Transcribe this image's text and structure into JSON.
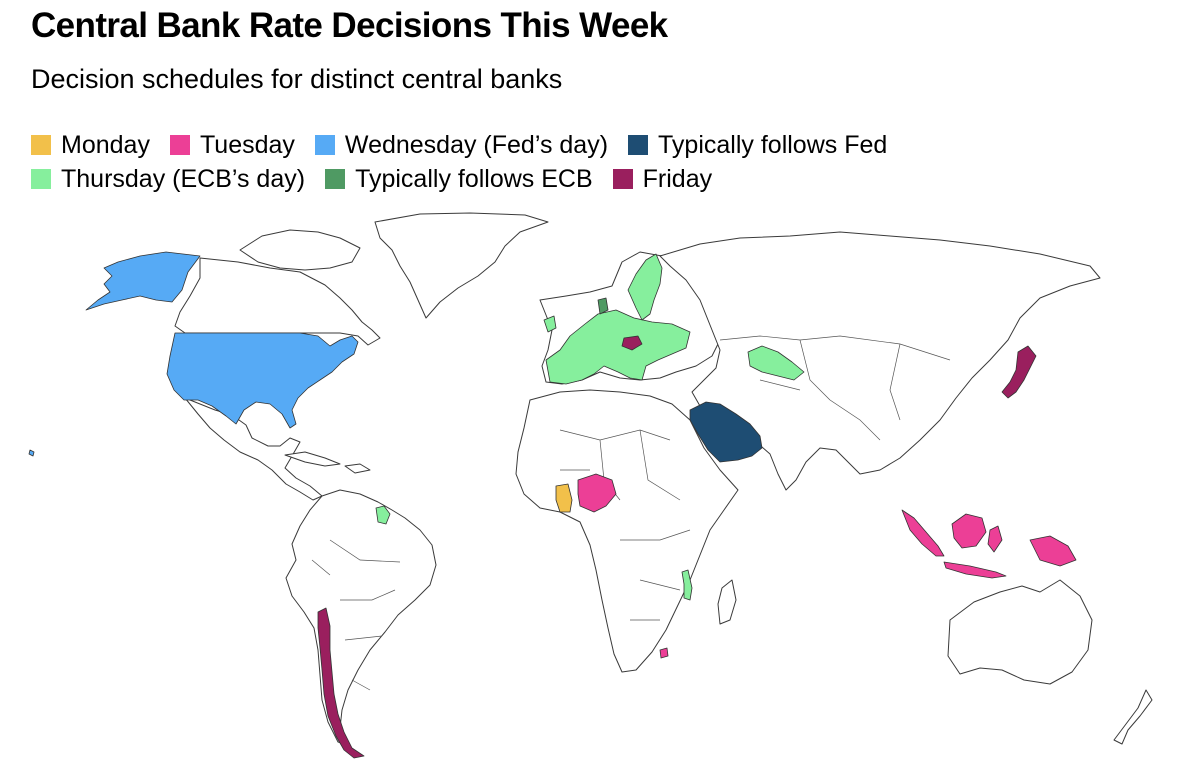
{
  "title": "Central Bank Rate Decisions This Week",
  "subtitle": "Decision schedules for distinct central banks",
  "legend": [
    {
      "label": "Monday",
      "color": "#f2c04a"
    },
    {
      "label": "Tuesday",
      "color": "#ec3f96"
    },
    {
      "label": "Wednesday (Fed’s day)",
      "color": "#56aaf5"
    },
    {
      "label": "Typically follows Fed",
      "color": "#1e4d73"
    },
    {
      "label": "Thursday (ECB’s day)",
      "color": "#86ef9d"
    },
    {
      "label": "Typically follows ECB",
      "color": "#4f9a63"
    },
    {
      "label": "Friday",
      "color": "#9a1f5e"
    }
  ],
  "countries": {
    "monday": [
      "Ghana"
    ],
    "tuesday": [
      "Nigeria",
      "Indonesia"
    ],
    "wednesday": [
      "United States"
    ],
    "follows_fed": [
      "Saudi Arabia"
    ],
    "thursday": [
      "Euro Area",
      "Sweden",
      "Norway",
      "Poland",
      "Romania",
      "Ukraine",
      "Kazakhstan",
      "Guyana",
      "Malawi"
    ],
    "follows_ecb": [
      "Denmark"
    ],
    "friday": [
      "Japan",
      "Chile",
      "Hungary"
    ]
  }
}
